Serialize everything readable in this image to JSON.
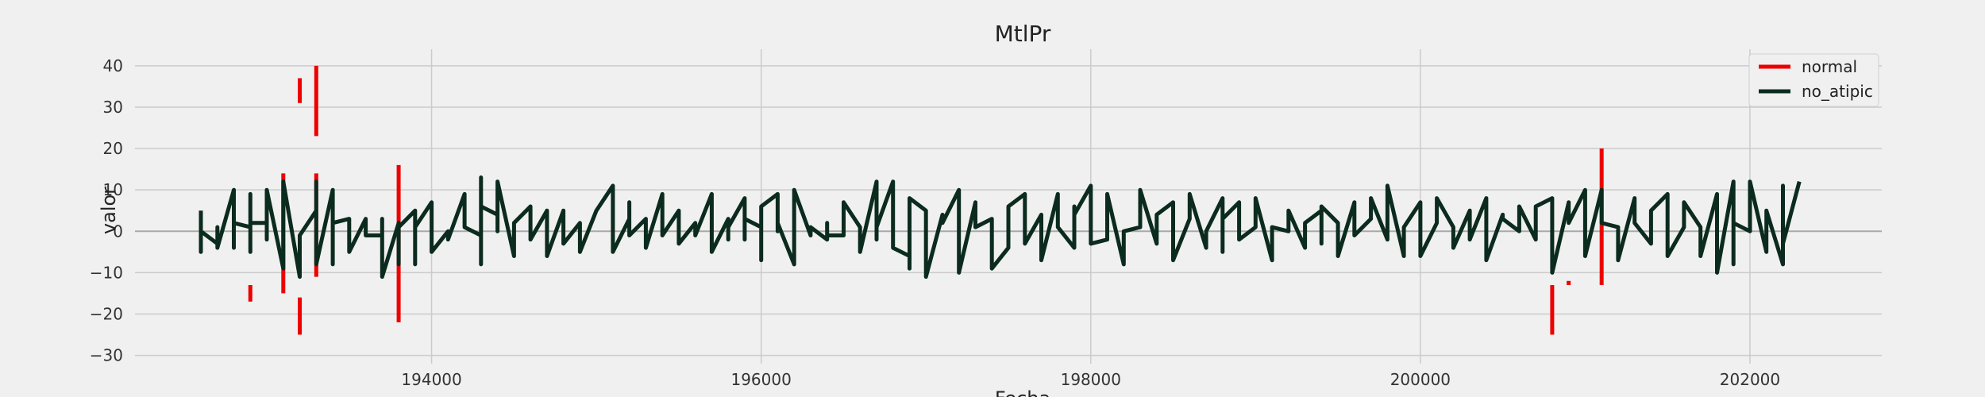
{
  "chart_data": {
    "type": "line",
    "title": "MtlPr",
    "xlabel": "Fecha",
    "ylabel": "valor",
    "xlim": [
      192200,
      202800
    ],
    "ylim": [
      -32,
      44
    ],
    "xticks": [
      194000,
      196000,
      198000,
      200000,
      202000
    ],
    "xtick_labels": [
      "194000",
      "196000",
      "198000",
      "200000",
      "202000"
    ],
    "yticks": [
      -30,
      -20,
      -10,
      0,
      10,
      20,
      30,
      40
    ],
    "ytick_labels": [
      "−30",
      "−20",
      "−10",
      "0",
      "10",
      "20",
      "30",
      "40"
    ],
    "grid": true,
    "legend_position": "top-right",
    "series": [
      {
        "name": "normal",
        "color": "#ee0000",
        "style": "vertical-segments",
        "segments": [
          [
            192900,
            -13,
            -17
          ],
          [
            193100,
            14,
            -15
          ],
          [
            193200,
            37,
            31
          ],
          [
            193200,
            -16,
            -25
          ],
          [
            193300,
            40,
            23
          ],
          [
            193300,
            14,
            -11
          ],
          [
            193800,
            16,
            -22
          ],
          [
            200800,
            -13,
            -25
          ],
          [
            200900,
            -12,
            -13
          ],
          [
            201100,
            20,
            -13
          ]
        ]
      },
      {
        "name": "no_atipic",
        "color": "#0b2b1e",
        "style": "line",
        "points": [
          [
            192600,
            5
          ],
          [
            192600,
            -5
          ],
          [
            192600,
            0
          ],
          [
            192700,
            -3
          ],
          [
            192700,
            1
          ],
          [
            192700,
            -4
          ],
          [
            192800,
            10
          ],
          [
            192800,
            -4
          ],
          [
            192800,
            2
          ],
          [
            192900,
            1
          ],
          [
            192900,
            9
          ],
          [
            192900,
            -5
          ],
          [
            192900,
            2
          ],
          [
            193000,
            2
          ],
          [
            193000,
            -2
          ],
          [
            193000,
            10
          ],
          [
            193100,
            -9
          ],
          [
            193100,
            -1
          ],
          [
            193100,
            12
          ],
          [
            193200,
            -11
          ],
          [
            193200,
            -1
          ],
          [
            193300,
            5
          ],
          [
            193300,
            12
          ],
          [
            193300,
            -8
          ],
          [
            193400,
            10
          ],
          [
            193400,
            4
          ],
          [
            193400,
            -8
          ],
          [
            193400,
            2
          ],
          [
            193500,
            3
          ],
          [
            193500,
            -2
          ],
          [
            193500,
            -5
          ],
          [
            193600,
            3
          ],
          [
            193600,
            -1
          ],
          [
            193700,
            -1
          ],
          [
            193700,
            3
          ],
          [
            193700,
            -11
          ],
          [
            193800,
            2
          ],
          [
            193800,
            -8
          ],
          [
            193800,
            1
          ],
          [
            193900,
            5
          ],
          [
            193900,
            -8
          ],
          [
            193900,
            1
          ],
          [
            194000,
            7
          ],
          [
            194000,
            -5
          ],
          [
            194100,
            0
          ],
          [
            194100,
            -2
          ],
          [
            194200,
            9
          ],
          [
            194200,
            1
          ],
          [
            194300,
            -1
          ],
          [
            194300,
            13
          ],
          [
            194300,
            -8
          ],
          [
            194300,
            6
          ],
          [
            194400,
            4
          ],
          [
            194400,
            0
          ],
          [
            194400,
            12
          ],
          [
            194500,
            -6
          ],
          [
            194500,
            2
          ],
          [
            194600,
            6
          ],
          [
            194600,
            -2
          ],
          [
            194700,
            5
          ],
          [
            194700,
            -1
          ],
          [
            194700,
            -6
          ],
          [
            194800,
            5
          ],
          [
            194800,
            -3
          ],
          [
            194900,
            2
          ],
          [
            194900,
            2
          ],
          [
            194900,
            -5
          ],
          [
            195000,
            5
          ],
          [
            195000,
            5
          ],
          [
            195100,
            11
          ],
          [
            195100,
            -5
          ],
          [
            195200,
            3
          ],
          [
            195200,
            7
          ],
          [
            195200,
            -1
          ],
          [
            195300,
            3
          ],
          [
            195300,
            -4
          ],
          [
            195400,
            9
          ],
          [
            195400,
            -1
          ],
          [
            195400,
            -1
          ],
          [
            195500,
            5
          ],
          [
            195500,
            -3
          ],
          [
            195600,
            2
          ],
          [
            195600,
            -1
          ],
          [
            195700,
            9
          ],
          [
            195700,
            -5
          ],
          [
            195800,
            3
          ],
          [
            195800,
            -2
          ],
          [
            195800,
            1
          ],
          [
            195900,
            8
          ],
          [
            195900,
            -2
          ],
          [
            195900,
            3
          ],
          [
            196000,
            1
          ],
          [
            196000,
            -7
          ],
          [
            196000,
            6
          ],
          [
            196100,
            9
          ],
          [
            196100,
            0
          ],
          [
            196100,
            2
          ],
          [
            196200,
            -8
          ],
          [
            196200,
            10
          ],
          [
            196300,
            -1
          ],
          [
            196300,
            1
          ],
          [
            196400,
            -2
          ],
          [
            196400,
            2
          ],
          [
            196400,
            -1
          ],
          [
            196500,
            -1
          ],
          [
            196500,
            7
          ],
          [
            196600,
            1
          ],
          [
            196600,
            -5
          ],
          [
            196700,
            12
          ],
          [
            196700,
            -2
          ],
          [
            196700,
            1
          ],
          [
            196800,
            12
          ],
          [
            196800,
            -4
          ],
          [
            196900,
            -6
          ],
          [
            196900,
            -9
          ],
          [
            196900,
            8
          ],
          [
            197000,
            5
          ],
          [
            197000,
            -11
          ],
          [
            197100,
            4
          ],
          [
            197100,
            2
          ],
          [
            197200,
            10
          ],
          [
            197200,
            -10
          ],
          [
            197300,
            7
          ],
          [
            197300,
            1
          ],
          [
            197400,
            3
          ],
          [
            197400,
            -9
          ],
          [
            197500,
            -4
          ],
          [
            197500,
            1
          ],
          [
            197500,
            6
          ],
          [
            197600,
            9
          ],
          [
            197600,
            -3
          ],
          [
            197700,
            4
          ],
          [
            197700,
            -7
          ],
          [
            197800,
            9
          ],
          [
            197800,
            1
          ],
          [
            197900,
            -4
          ],
          [
            197900,
            6
          ],
          [
            197900,
            4
          ],
          [
            198000,
            11
          ],
          [
            198000,
            -3
          ],
          [
            198100,
            -2
          ],
          [
            198100,
            9
          ],
          [
            198200,
            -8
          ],
          [
            198200,
            0
          ],
          [
            198300,
            1
          ],
          [
            198300,
            10
          ],
          [
            198400,
            -3
          ],
          [
            198400,
            4
          ],
          [
            198500,
            7
          ],
          [
            198500,
            -2
          ],
          [
            198500,
            -7
          ],
          [
            198600,
            3
          ],
          [
            198600,
            9
          ],
          [
            198700,
            -4
          ],
          [
            198700,
            0
          ],
          [
            198800,
            8
          ],
          [
            198800,
            -5
          ],
          [
            198800,
            3
          ],
          [
            198900,
            7
          ],
          [
            198900,
            -2
          ],
          [
            199000,
            1
          ],
          [
            199000,
            8
          ],
          [
            199100,
            -7
          ],
          [
            199100,
            1
          ],
          [
            199200,
            0
          ],
          [
            199200,
            5
          ],
          [
            199300,
            -4
          ],
          [
            199300,
            2
          ],
          [
            199400,
            5
          ],
          [
            199400,
            -3
          ],
          [
            199400,
            6
          ],
          [
            199500,
            2
          ],
          [
            199500,
            -6
          ],
          [
            199600,
            7
          ],
          [
            199600,
            -1
          ],
          [
            199700,
            3
          ],
          [
            199700,
            8
          ],
          [
            199800,
            -2
          ],
          [
            199800,
            11
          ],
          [
            199900,
            -6
          ],
          [
            199900,
            1
          ],
          [
            200000,
            7
          ],
          [
            200000,
            -6
          ],
          [
            200100,
            2
          ],
          [
            200100,
            8
          ],
          [
            200200,
            1
          ],
          [
            200200,
            -4
          ],
          [
            200300,
            5
          ],
          [
            200300,
            -2
          ],
          [
            200400,
            8
          ],
          [
            200400,
            -7
          ],
          [
            200500,
            4
          ],
          [
            200500,
            3
          ],
          [
            200600,
            0
          ],
          [
            200600,
            6
          ],
          [
            200700,
            -2
          ],
          [
            200700,
            6
          ],
          [
            200800,
            8
          ],
          [
            200800,
            -10
          ],
          [
            200900,
            7
          ],
          [
            200900,
            2
          ],
          [
            201000,
            10
          ],
          [
            201000,
            -6
          ],
          [
            201100,
            10
          ],
          [
            201100,
            2
          ],
          [
            201200,
            1
          ],
          [
            201200,
            -7
          ],
          [
            201300,
            8
          ],
          [
            201300,
            2
          ],
          [
            201400,
            -3
          ],
          [
            201400,
            5
          ],
          [
            201500,
            9
          ],
          [
            201500,
            -6
          ],
          [
            201600,
            1
          ],
          [
            201600,
            7
          ],
          [
            201700,
            1
          ],
          [
            201700,
            -6
          ],
          [
            201800,
            9
          ],
          [
            201800,
            1
          ],
          [
            201800,
            -10
          ],
          [
            201900,
            12
          ],
          [
            201900,
            -8
          ],
          [
            201900,
            2
          ],
          [
            202000,
            0
          ],
          [
            202000,
            12
          ],
          [
            202100,
            -5
          ],
          [
            202100,
            5
          ],
          [
            202200,
            -8
          ],
          [
            202200,
            11
          ],
          [
            202200,
            -3
          ],
          [
            202300,
            12
          ]
        ]
      }
    ]
  }
}
